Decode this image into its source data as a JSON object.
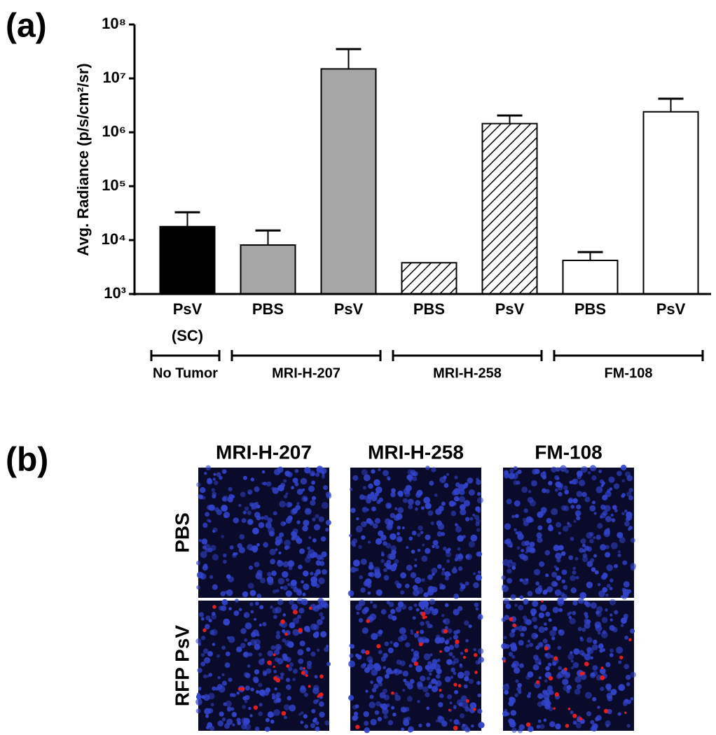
{
  "chart_data": {
    "type": "bar",
    "panel_label": "(a)",
    "ylabel": "Avg. Radiance (p/s/cm²/sr)",
    "log_scale": true,
    "categories": [
      "PsV\n(SC)",
      "PBS",
      "PsV",
      "PBS",
      "PsV",
      "PBS",
      "PsV"
    ],
    "values": [
      17800,
      8100,
      15000000,
      3800,
      1450000,
      4200,
      2400000
    ],
    "errors": [
      15000,
      7000,
      20000000,
      null,
      600000,
      1800,
      1800000
    ],
    "fills": [
      "#000000",
      "#a6a6a6",
      "#a6a6a6",
      "hatch",
      "hatch",
      "#ffffff",
      "#ffffff"
    ],
    "groups": [
      {
        "name": "No Tumor",
        "size": 1
      },
      {
        "name": "MRI-H-207",
        "size": 2
      },
      {
        "name": "MRI-H-258",
        "size": 2
      },
      {
        "name": "FM-108",
        "size": 2
      }
    ],
    "ylim": [
      1000,
      100000000
    ],
    "yticks": [
      {
        "value": 1000,
        "label": "10³"
      },
      {
        "value": 10000,
        "label": "10⁴"
      },
      {
        "value": 100000,
        "label": "10⁵"
      },
      {
        "value": 1000000,
        "label": "10⁶"
      },
      {
        "value": 10000000,
        "label": "10⁷"
      },
      {
        "value": 100000000,
        "label": "10⁸"
      }
    ]
  },
  "panel_b": {
    "panel_label": "(b)",
    "columns": [
      "MRI-H-207",
      "MRI-H-258",
      "FM-108"
    ],
    "rows": [
      "PBS",
      "RFP PsV"
    ]
  }
}
